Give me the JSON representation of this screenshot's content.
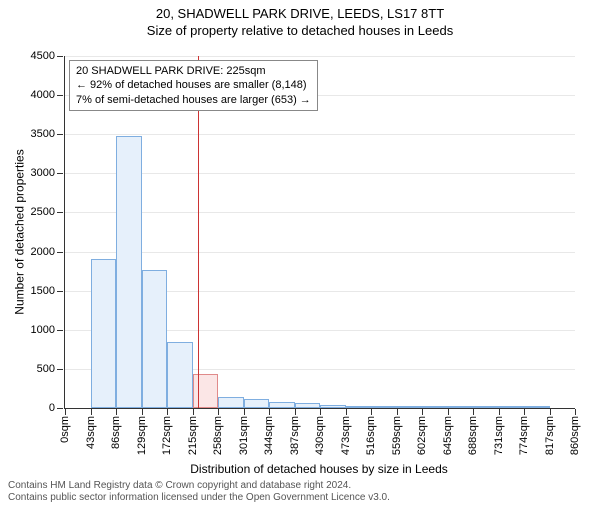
{
  "title": "20, SHADWELL PARK DRIVE, LEEDS, LS17 8TT",
  "subtitle": "Size of property relative to detached houses in Leeds",
  "chart": {
    "type": "histogram",
    "ylabel": "Number of detached properties",
    "xlabel": "Distribution of detached houses by size in Leeds",
    "ylim": [
      0,
      4500
    ],
    "ytick_step": 500,
    "yticks": [
      0,
      500,
      1000,
      1500,
      2000,
      2500,
      3000,
      3500,
      4000,
      4500
    ],
    "xticks": [
      "0sqm",
      "43sqm",
      "86sqm",
      "129sqm",
      "172sqm",
      "215sqm",
      "258sqm",
      "301sqm",
      "344sqm",
      "387sqm",
      "430sqm",
      "473sqm",
      "516sqm",
      "559sqm",
      "602sqm",
      "645sqm",
      "688sqm",
      "731sqm",
      "774sqm",
      "817sqm",
      "860sqm"
    ],
    "bar_count": 20,
    "values": [
      0,
      1900,
      3480,
      1770,
      850,
      430,
      140,
      120,
      80,
      60,
      40,
      20,
      10,
      10,
      5,
      5,
      5,
      5,
      5,
      0
    ],
    "bar_fill": "#e6f0fb",
    "bar_stroke": "#7faee0",
    "highlight_index": 5,
    "highlight_fill": "#fbe6e6",
    "highlight_stroke": "#e08a8a",
    "grid_color": "#e8e8e8",
    "background_color": "#ffffff",
    "marker_value": 225,
    "marker_color": "#cc3333",
    "x_max": 860
  },
  "annotation": {
    "line1": "20 SHADWELL PARK DRIVE: 225sqm",
    "line2": "← 92% of detached houses are smaller (8,148)",
    "line3": "7% of semi-detached houses are larger (653) →"
  },
  "footer": {
    "line1": "Contains HM Land Registry data © Crown copyright and database right 2024.",
    "line2": "Contains public sector information licensed under the Open Government Licence v3.0."
  }
}
